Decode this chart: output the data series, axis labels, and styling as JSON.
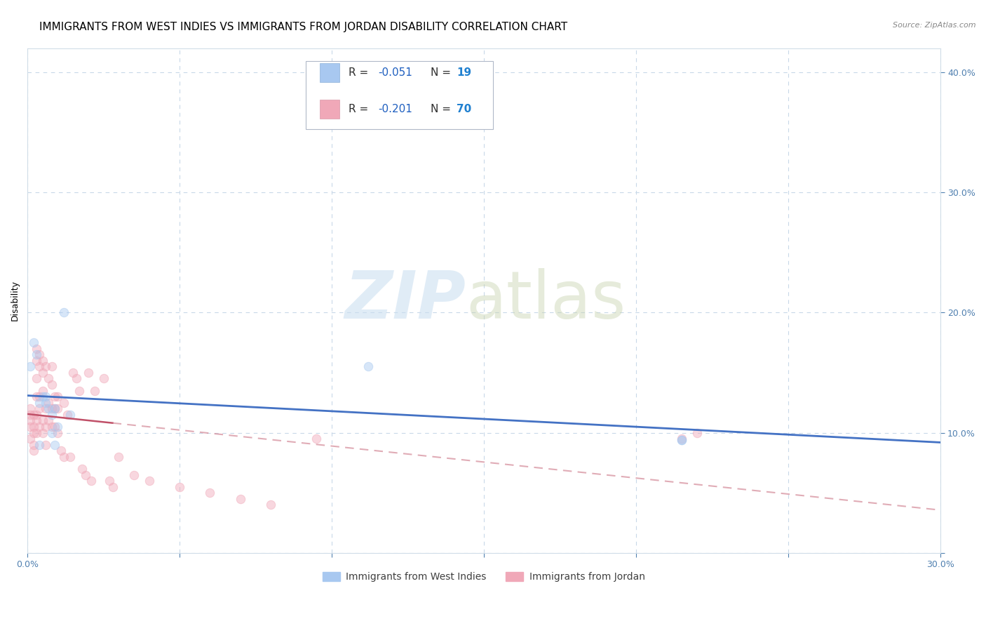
{
  "title": "IMMIGRANTS FROM WEST INDIES VS IMMIGRANTS FROM JORDAN DISABILITY CORRELATION CHART",
  "source": "Source: ZipAtlas.com",
  "ylabel": "Disability",
  "xlim": [
    0.0,
    0.3
  ],
  "ylim": [
    0.0,
    0.42
  ],
  "west_indies_R": -0.051,
  "west_indies_N": 19,
  "jordan_R": -0.201,
  "jordan_N": 70,
  "west_indies_color": "#a8c8f0",
  "jordan_color": "#f0a8b8",
  "west_indies_line_color": "#4472c4",
  "jordan_line_color": "#c0506880",
  "jordan_solid_color": "#c05068",
  "jordan_dash_color": "#d08090",
  "west_indies_x": [
    0.001,
    0.002,
    0.003,
    0.004,
    0.004,
    0.005,
    0.006,
    0.006,
    0.007,
    0.008,
    0.008,
    0.009,
    0.01,
    0.012,
    0.014,
    0.009,
    0.112,
    0.215,
    0.215
  ],
  "west_indies_y": [
    0.155,
    0.175,
    0.165,
    0.125,
    0.09,
    0.13,
    0.125,
    0.13,
    0.12,
    0.1,
    0.115,
    0.12,
    0.105,
    0.2,
    0.115,
    0.09,
    0.155,
    0.094,
    0.094
  ],
  "jordan_x": [
    0.001,
    0.001,
    0.001,
    0.001,
    0.001,
    0.002,
    0.002,
    0.002,
    0.002,
    0.002,
    0.003,
    0.003,
    0.003,
    0.003,
    0.003,
    0.003,
    0.003,
    0.004,
    0.004,
    0.004,
    0.004,
    0.004,
    0.005,
    0.005,
    0.005,
    0.005,
    0.005,
    0.006,
    0.006,
    0.006,
    0.006,
    0.007,
    0.007,
    0.007,
    0.008,
    0.008,
    0.008,
    0.008,
    0.009,
    0.009,
    0.009,
    0.01,
    0.01,
    0.01,
    0.011,
    0.012,
    0.012,
    0.013,
    0.014,
    0.015,
    0.016,
    0.017,
    0.018,
    0.019,
    0.02,
    0.021,
    0.022,
    0.025,
    0.027,
    0.028,
    0.03,
    0.035,
    0.04,
    0.05,
    0.06,
    0.07,
    0.08,
    0.095,
    0.215,
    0.22
  ],
  "jordan_y": [
    0.12,
    0.115,
    0.11,
    0.105,
    0.095,
    0.115,
    0.105,
    0.1,
    0.09,
    0.085,
    0.17,
    0.16,
    0.145,
    0.13,
    0.115,
    0.11,
    0.1,
    0.165,
    0.155,
    0.13,
    0.12,
    0.105,
    0.16,
    0.15,
    0.135,
    0.11,
    0.1,
    0.155,
    0.12,
    0.105,
    0.09,
    0.145,
    0.125,
    0.11,
    0.155,
    0.14,
    0.12,
    0.105,
    0.13,
    0.12,
    0.105,
    0.13,
    0.12,
    0.1,
    0.085,
    0.125,
    0.08,
    0.115,
    0.08,
    0.15,
    0.145,
    0.135,
    0.07,
    0.065,
    0.15,
    0.06,
    0.135,
    0.145,
    0.06,
    0.055,
    0.08,
    0.065,
    0.06,
    0.055,
    0.05,
    0.045,
    0.04,
    0.095,
    0.095,
    0.1
  ],
  "grid_color": "#c8d8e8",
  "background_color": "#ffffff",
  "axis_color": "#5080b0",
  "title_fontsize": 11,
  "axis_label_fontsize": 9,
  "tick_fontsize": 9,
  "marker_size": 80,
  "marker_alpha": 0.45
}
